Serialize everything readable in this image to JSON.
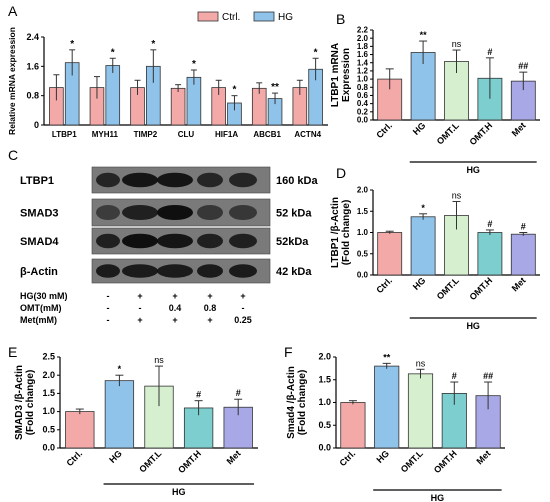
{
  "colors": {
    "ctrl": "#f4a9a9",
    "hg": "#8fc3ea",
    "omtl": "#d6f0cf",
    "omth": "#7dcfcf",
    "met": "#a8a8e6"
  },
  "chart_data": [
    {
      "panel": "A",
      "type": "bar",
      "categories": [
        "LTBP1",
        "MYH11",
        "TIMP2",
        "CLU",
        "HIF1A",
        "ABCB1",
        "ACTN4"
      ],
      "ylabel": "Relative mRNA expression",
      "ylim": [
        0,
        2.4
      ],
      "yticks": [
        "0",
        "0.8",
        "1.6",
        "2.4"
      ],
      "legend": [
        "Ctrl.",
        "HG"
      ],
      "legend_position": "top-right",
      "series": [
        {
          "name": "Ctrl.",
          "color_key": "ctrl",
          "values": [
            1.02,
            1.02,
            1.02,
            1.0,
            1.02,
            1.0,
            1.02
          ],
          "errors": [
            0.35,
            0.3,
            0.2,
            0.1,
            0.2,
            0.15,
            0.2
          ]
        },
        {
          "name": "HG",
          "color_key": "hg",
          "values": [
            1.7,
            1.62,
            1.6,
            1.3,
            0.6,
            0.72,
            1.52
          ],
          "errors": [
            0.35,
            0.2,
            0.45,
            0.2,
            0.2,
            0.15,
            0.3
          ]
        }
      ],
      "annotations": [
        {
          "category": "LTBP1",
          "text": "*"
        },
        {
          "category": "MYH11",
          "text": "*"
        },
        {
          "category": "TIMP2",
          "text": "*"
        },
        {
          "category": "CLU",
          "text": "*"
        },
        {
          "category": "HIF1A",
          "text": "*"
        },
        {
          "category": "ABCB1",
          "text": "**"
        },
        {
          "category": "ACTN4",
          "text": "*"
        }
      ]
    },
    {
      "panel": "B",
      "type": "bar",
      "categories": [
        "Ctrl.",
        "HG",
        "OMT.L",
        "OMT.H",
        "Met"
      ],
      "ylabel": [
        "LTBP1 mRNA",
        "Expression"
      ],
      "ylim": [
        0,
        2.2
      ],
      "yticks": [
        "0.0",
        "0.2",
        "0.4",
        "0.6",
        "0.8",
        "1.0",
        "1.2",
        "1.4",
        "1.6",
        "1.8",
        "2.0",
        "2.2"
      ],
      "values": [
        1.0,
        1.65,
        1.43,
        1.02,
        0.95
      ],
      "errors": [
        0.25,
        0.28,
        0.28,
        0.5,
        0.22
      ],
      "labels": [
        "",
        "**",
        "ns",
        "#",
        "##"
      ],
      "group_label": "HG"
    },
    {
      "panel": "C",
      "type": "blot",
      "bands": [
        "LTBP1",
        "SMAD3",
        "SMAD4",
        "β-Actin"
      ],
      "sizes": [
        "160 kDa",
        "52 kDa",
        "52kDa",
        "42 kDa"
      ],
      "rows": [
        {
          "label": "HG(30 mM)",
          "values": [
            "-",
            "+",
            "+",
            "+",
            "+"
          ]
        },
        {
          "label": "OMT(mM)",
          "values": [
            "-",
            "-",
            "0.4",
            "0.8",
            "-"
          ]
        },
        {
          "label": "Met(mM)",
          "values": [
            "-",
            "+",
            "+",
            "+",
            "0.25"
          ]
        }
      ]
    },
    {
      "panel": "D",
      "type": "bar",
      "categories": [
        "Ctrl.",
        "HG",
        "OMT.L",
        "OMT.H",
        "Met"
      ],
      "ylabel": [
        "LTBP1 /β-Actin",
        "(Fold change)"
      ],
      "ylim": [
        0,
        2.0
      ],
      "yticks": [
        "0.0",
        "0.5",
        "1.0",
        "1.5",
        "2.0"
      ],
      "values": [
        1.0,
        1.37,
        1.4,
        1.0,
        0.96
      ],
      "errors": [
        0.03,
        0.07,
        0.33,
        0.06,
        0.04
      ],
      "labels": [
        "",
        "*",
        "ns",
        "#",
        "#"
      ],
      "group_label": "HG"
    },
    {
      "panel": "E",
      "type": "bar",
      "categories": [
        "Ctrl.",
        "HG",
        "OMT.L",
        "OMT.H",
        "Met"
      ],
      "ylabel": [
        "SMAD3 /β-Actin",
        "(Fold change)"
      ],
      "ylim": [
        0,
        2.5
      ],
      "yticks": [
        "0.0",
        "0.5",
        "1.0",
        "1.5",
        "2.0",
        "2.5"
      ],
      "values": [
        1.0,
        1.85,
        1.7,
        1.1,
        1.12
      ],
      "errors": [
        0.07,
        0.15,
        0.55,
        0.2,
        0.22
      ],
      "labels": [
        "",
        "*",
        "ns",
        "#",
        "#"
      ],
      "group_label": "HG"
    },
    {
      "panel": "F",
      "type": "bar",
      "categories": [
        "Ctrl.",
        "HG",
        "OMT.L",
        "OMT.H",
        "Met"
      ],
      "ylabel": [
        "Smad4 /β-Actin",
        "(Fold change)"
      ],
      "ylim": [
        0,
        2.0
      ],
      "yticks": [
        "0.0",
        "0.5",
        "1.0",
        "1.5",
        "2.0"
      ],
      "values": [
        1.0,
        1.8,
        1.63,
        1.2,
        1.15
      ],
      "errors": [
        0.04,
        0.06,
        0.1,
        0.25,
        0.3
      ],
      "labels": [
        "",
        "**",
        "ns",
        "#",
        "##"
      ],
      "group_label": "HG"
    }
  ]
}
